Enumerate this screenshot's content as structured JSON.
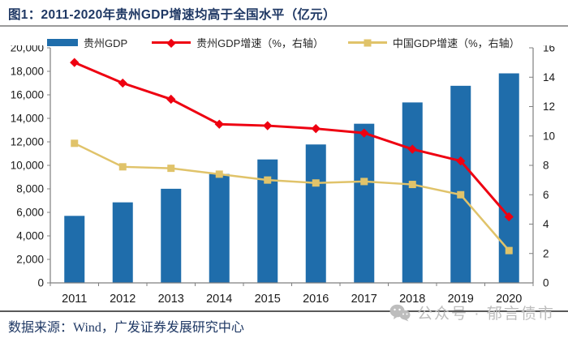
{
  "chart_data": {
    "type": "bar+line",
    "title": "图1：2011-2020年贵州GDP增速均高于全国水平（亿元）",
    "xlabel": "",
    "ylabel": "",
    "categories": [
      "2011",
      "2012",
      "2013",
      "2014",
      "2015",
      "2016",
      "2017",
      "2018",
      "2019",
      "2020"
    ],
    "series": [
      {
        "name": "贵州GDP",
        "type": "bar",
        "axis": "left",
        "color": "#1F6DAB",
        "values": [
          5702,
          6852,
          8007,
          9266,
          10503,
          11777,
          13541,
          15353,
          16769,
          17827
        ]
      },
      {
        "name": "贵州GDP增速（%，右轴）",
        "type": "line",
        "marker": "diamond",
        "axis": "right",
        "color": "#EE0011",
        "values": [
          15.0,
          13.6,
          12.5,
          10.8,
          10.7,
          10.5,
          10.2,
          9.1,
          8.3,
          4.5
        ]
      },
      {
        "name": "中国GDP增速（%，右轴）",
        "type": "line",
        "marker": "square",
        "axis": "right",
        "color": "#E0C36A",
        "values": [
          9.5,
          7.9,
          7.8,
          7.4,
          7.0,
          6.8,
          6.9,
          6.7,
          6.0,
          2.2
        ]
      }
    ],
    "y_left": {
      "min": 0,
      "max": 20000,
      "tick_labels": [
        "0",
        "2,000",
        "4,000",
        "6,000",
        "8,000",
        "10,000",
        "12,000",
        "14,000",
        "16,000",
        "18,000",
        "20,000"
      ]
    },
    "y_right": {
      "min": 0,
      "max": 16,
      "tick_labels": [
        "0",
        "2",
        "4",
        "6",
        "8",
        "10",
        "12",
        "14",
        "16"
      ]
    },
    "legend_position": "top",
    "grid": false
  },
  "footer": {
    "source": "数据来源：Wind，广发证券发展研究中心"
  },
  "watermark": {
    "text": "公众号 · 郁言债市",
    "icon": "wechat-icon"
  },
  "colors": {
    "title_text": "#1F3864",
    "axis_line": "#7F7F7F",
    "tick_text": "#1A1A1A",
    "divider_top": "#9A9A9A",
    "divider_bottom": "#595959",
    "watermark_text": "#BDBDBD"
  }
}
